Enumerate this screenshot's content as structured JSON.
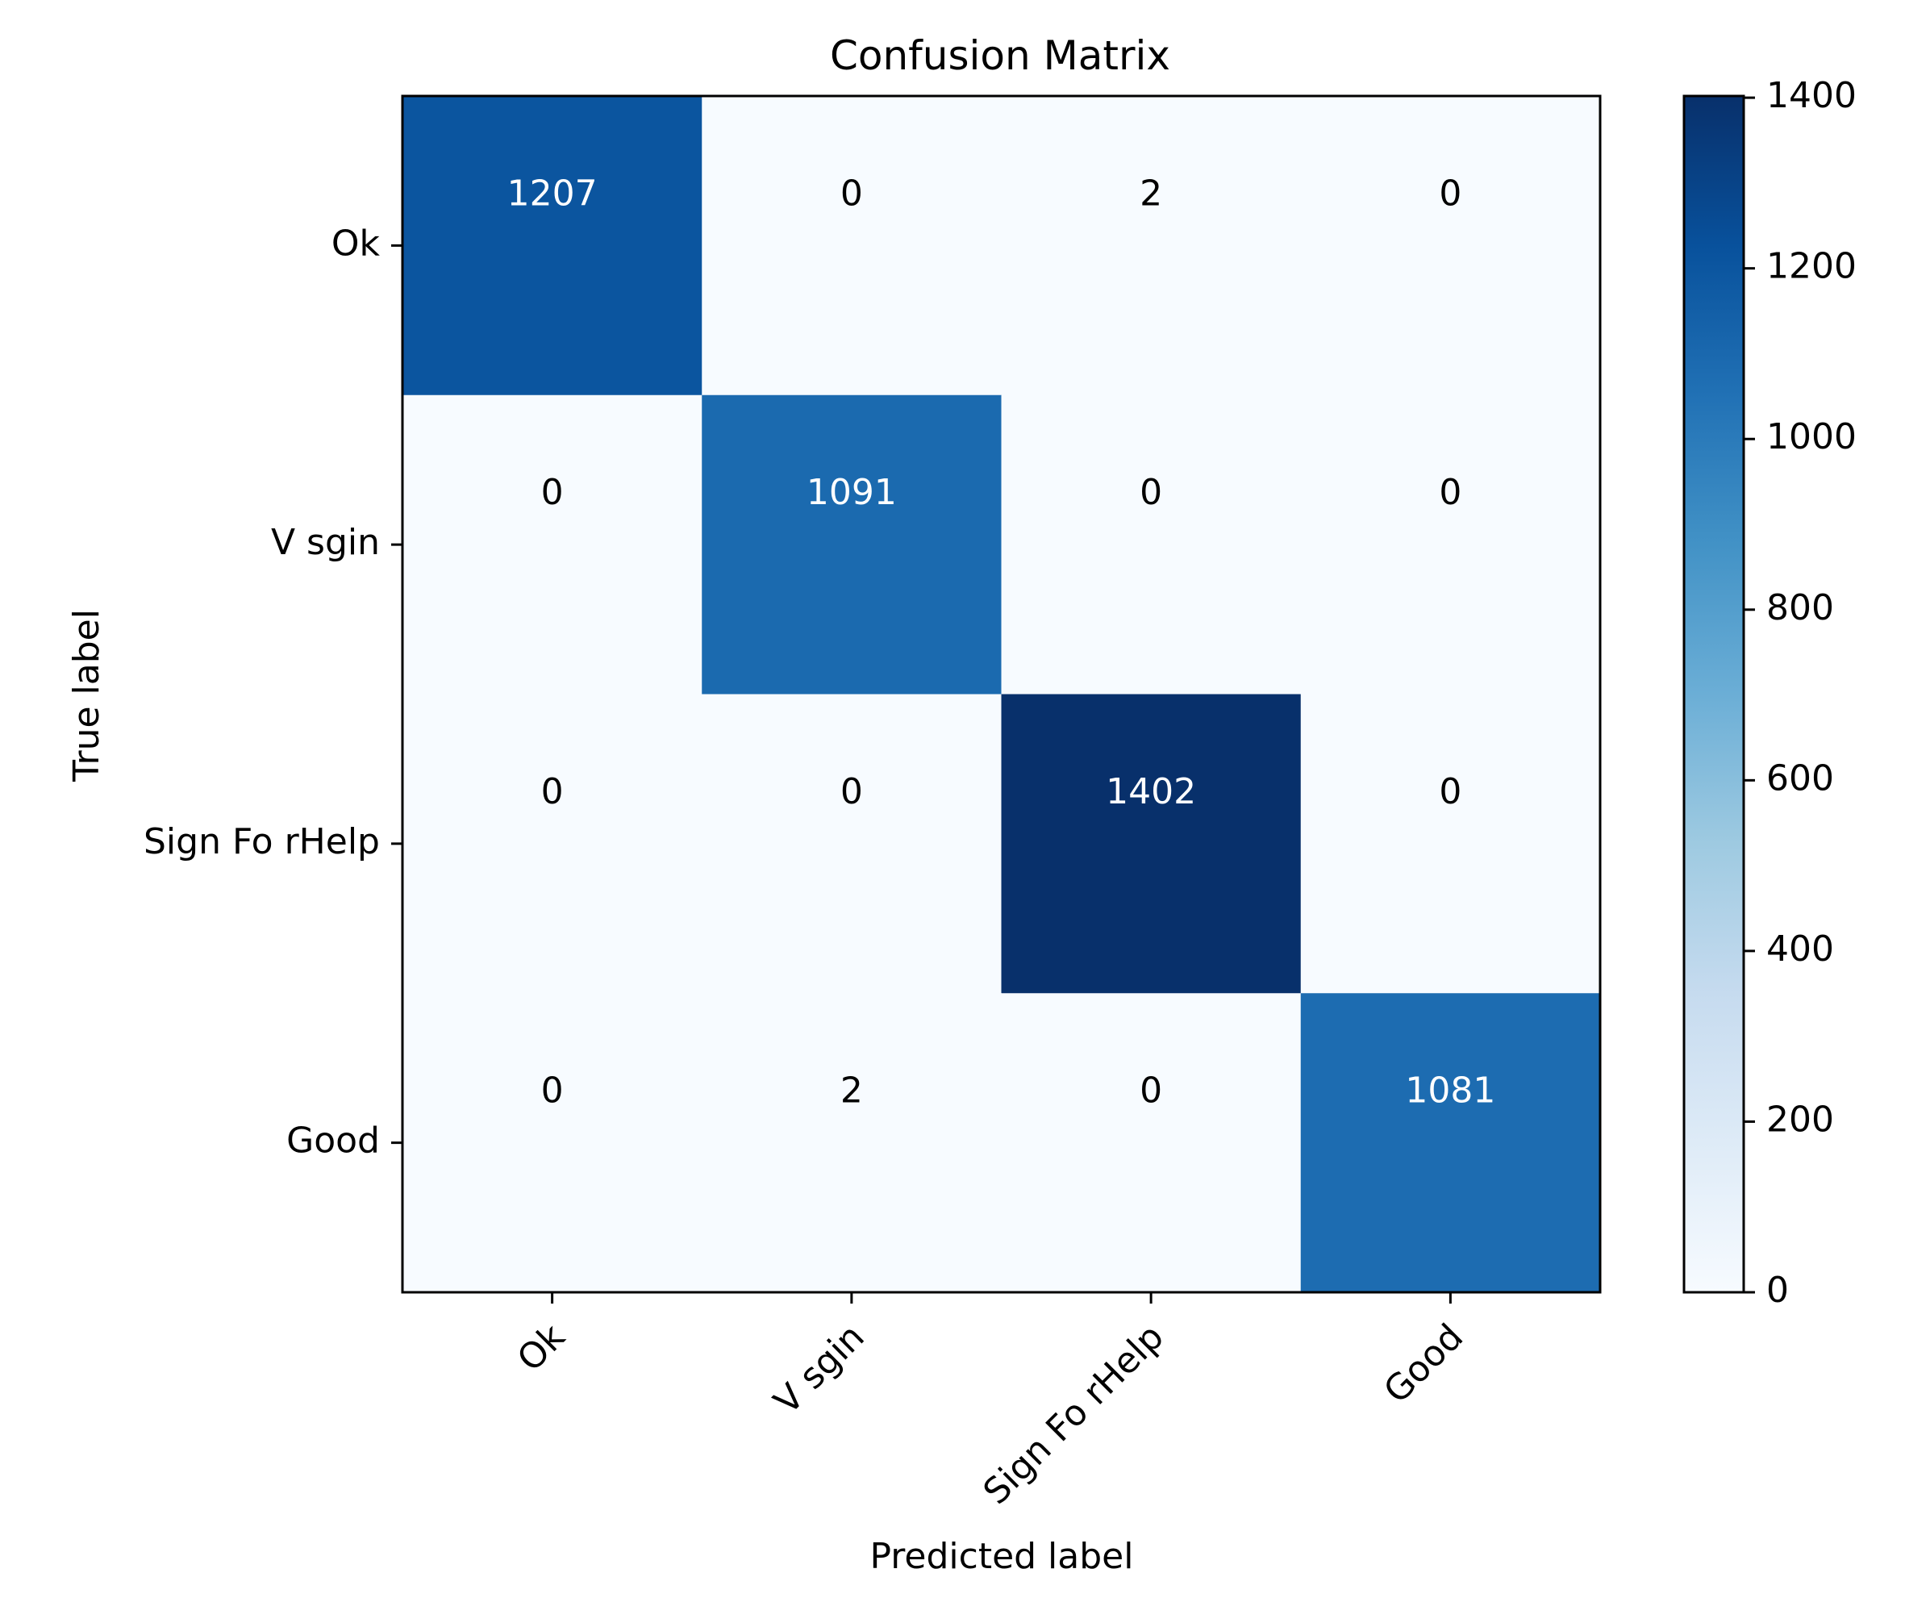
{
  "chart_data": {
    "type": "heatmap",
    "title": "Confusion Matrix",
    "xlabel": "Predicted label",
    "ylabel": "True label",
    "x_categories": [
      "Ok",
      "V sgin",
      "Sign Fo rHelp",
      "Good"
    ],
    "y_categories": [
      "Ok",
      "V sgin",
      "Sign Fo rHelp",
      "Good"
    ],
    "matrix": [
      [
        1207,
        0,
        2,
        0
      ],
      [
        0,
        1091,
        0,
        0
      ],
      [
        0,
        0,
        1402,
        0
      ],
      [
        0,
        2,
        0,
        1081
      ]
    ],
    "colorbar": {
      "min": 0,
      "max": 1402,
      "ticks": [
        "0",
        "200",
        "400",
        "600",
        "800",
        "1000",
        "1200",
        "1400"
      ]
    },
    "colormap": "Blues",
    "colors": {
      "low": "#f7fbff",
      "high": "#08306b",
      "text_dark": "#000000",
      "text_light": "#ffffff"
    },
    "grid": false
  }
}
